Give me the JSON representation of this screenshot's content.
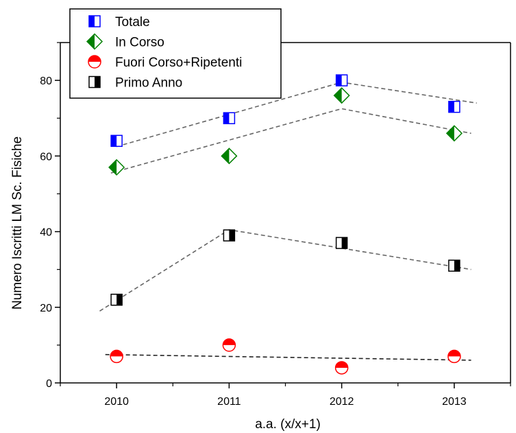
{
  "chart_data": {
    "type": "scatter",
    "title": "",
    "xlabel": "a.a. (x/x+1)",
    "ylabel": "Numero Iscritti LM Sc. Fisiche",
    "x": [
      2010,
      2011,
      2012,
      2013
    ],
    "xticks": [
      "2010",
      "2011",
      "2012",
      "2013"
    ],
    "xlim": [
      2009.5,
      2013.5
    ],
    "yticks": [
      "0",
      "20",
      "40",
      "60",
      "80"
    ],
    "ylim": [
      0,
      90
    ],
    "grid": false,
    "legend_position": "top-left",
    "series": [
      {
        "name": "Totale",
        "marker": "square-left-half",
        "color": "#0000ff",
        "values": [
          64,
          70,
          80,
          73
        ],
        "trend": {
          "x": [
            2010,
            2012,
            2013.2
          ],
          "y": [
            62.5,
            79.5,
            74
          ]
        }
      },
      {
        "name": "In Corso",
        "marker": "diamond-left-half",
        "color": "#008000",
        "values": [
          57,
          60,
          76,
          66
        ],
        "trend": {
          "x": [
            2009.95,
            2012,
            2013.15
          ],
          "y": [
            55.5,
            72.5,
            66
          ]
        }
      },
      {
        "name": "Fuori Corso+Ripetenti",
        "marker": "circle-top-half",
        "color": "#ff0000",
        "values": [
          7,
          10,
          4,
          7
        ],
        "trend": {
          "x": [
            2009.9,
            2013.15
          ],
          "y": [
            7.5,
            6
          ]
        }
      },
      {
        "name": "Primo Anno",
        "marker": "square-right-half",
        "color": "#000000",
        "values": [
          22,
          39,
          37,
          31
        ],
        "trend": {
          "x": [
            2009.85,
            2011,
            2013.15
          ],
          "y": [
            19,
            40.5,
            30
          ]
        }
      }
    ]
  }
}
